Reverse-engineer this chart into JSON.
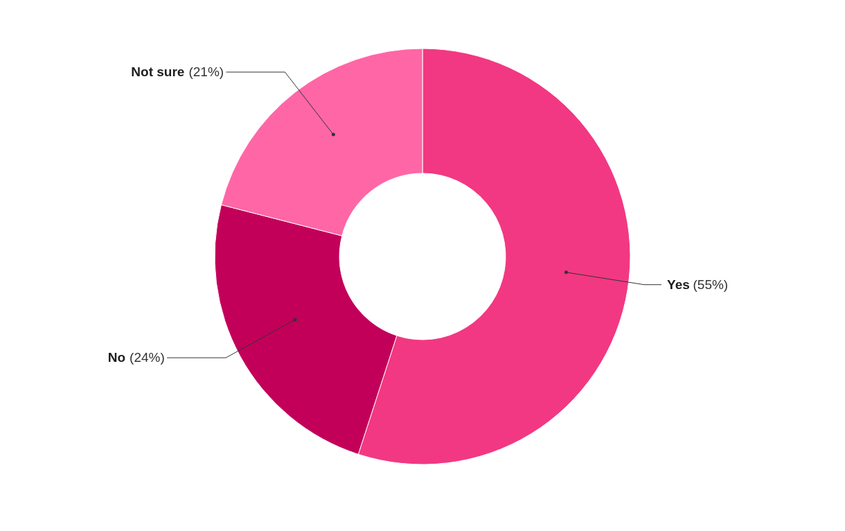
{
  "chart_data": {
    "type": "donut",
    "categories": [
      "Yes",
      "No",
      "Not sure"
    ],
    "values": [
      55,
      24,
      21
    ],
    "colors": [
      "#f23882",
      "#c2005a",
      "#ff66a6"
    ],
    "value_labels": [
      "(55%)",
      "(24%)",
      "(21%)"
    ],
    "legend": false
  }
}
